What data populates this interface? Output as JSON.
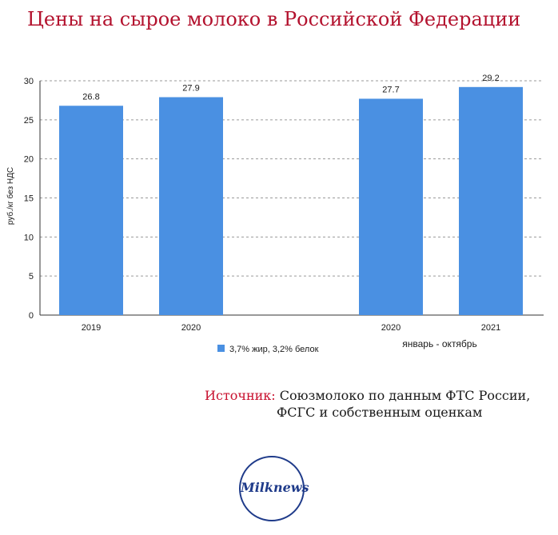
{
  "title": "Цены на сырое молоко в Российской Федерации",
  "chart_data": {
    "type": "bar",
    "title": "Цены на сырое молоко в Российской Федерации",
    "ylabel": "руб./кг без НДС",
    "ylim": [
      0,
      30
    ],
    "yticks": [
      0,
      5,
      10,
      15,
      20,
      25,
      30
    ],
    "grid": true,
    "categories": [
      "2019",
      "2020",
      "2020",
      "2021"
    ],
    "category_group_labels": [
      "",
      "",
      "январь - октябрь",
      "январь - октябрь"
    ],
    "group_label": "январь - октябрь",
    "series": [
      {
        "name": "3,7% жир, 3,2% белок",
        "values": [
          26.8,
          27.9,
          27.7,
          29.2
        ],
        "color": "#4a90e2"
      }
    ],
    "data_labels": [
      "26.8",
      "27.9",
      "27.7",
      "29.2"
    ],
    "legend_position": "bottom"
  },
  "source": {
    "label": "Источник:",
    "line1": "Союзмолоко по данным ФТС России,",
    "line2": "ФСГС и собственным оценкам"
  },
  "logo": {
    "text": "Milknews"
  }
}
